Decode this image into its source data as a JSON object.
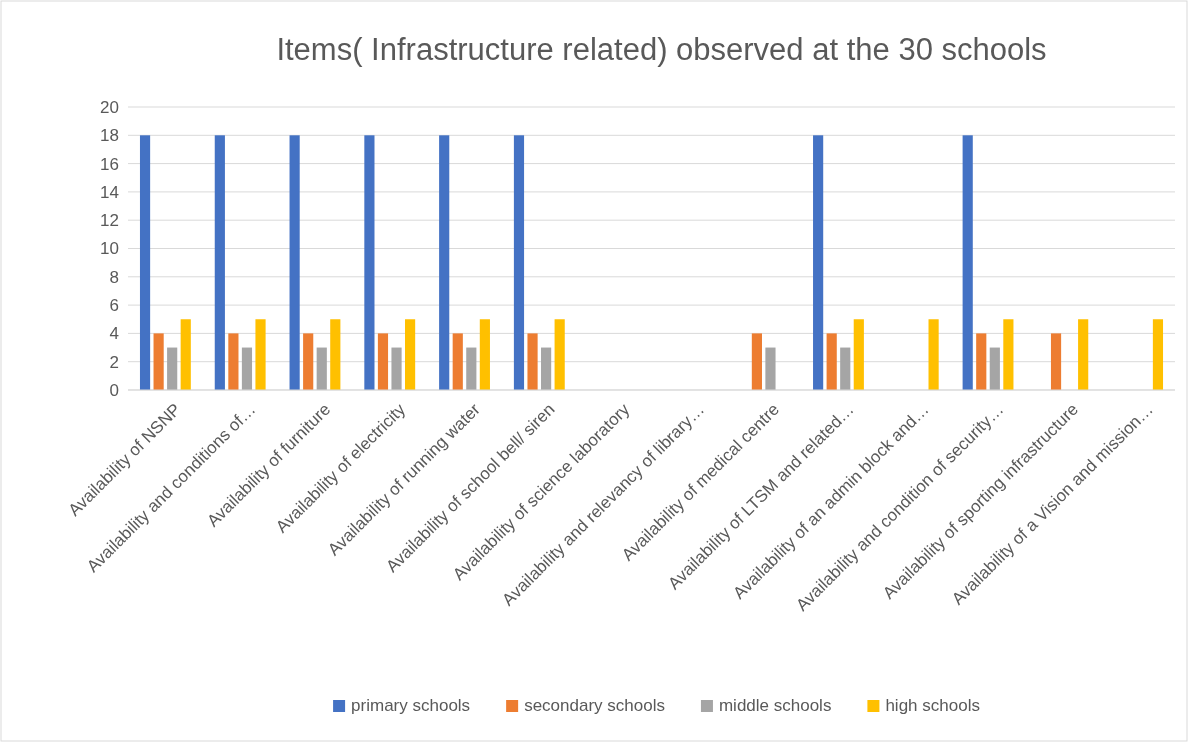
{
  "chart_data": {
    "type": "bar",
    "title": "Items( Infrastructure related) observed at the 30 schools",
    "categories": [
      "Availability of NSNP",
      "Availability and conditions of…",
      "Availability of furniture",
      "Availability of electricity",
      "Availability of running water",
      "Availability of school bell/ siren",
      "Availability of science laboratory",
      "Availability and relevancy of library…",
      "Availability of medical centre",
      "Availability of LTSM and related…",
      "Availability of an admin block and…",
      "Availability and condition of security…",
      "Availability of sporting infrastructure",
      "Availability of a Vision and mission…"
    ],
    "series": [
      {
        "name": "primary schools",
        "color": "#4472c4",
        "values": [
          18,
          18,
          18,
          18,
          18,
          18,
          0,
          0,
          0,
          18,
          0,
          18,
          0,
          0
        ]
      },
      {
        "name": "secondary schools",
        "color": "#ed7d31",
        "values": [
          4,
          4,
          4,
          4,
          4,
          4,
          0,
          0,
          4,
          4,
          0,
          4,
          4,
          0
        ]
      },
      {
        "name": "middle schools",
        "color": "#a5a5a5",
        "values": [
          3,
          3,
          3,
          3,
          3,
          3,
          0,
          0,
          3,
          3,
          0,
          3,
          0,
          0
        ]
      },
      {
        "name": "high schools",
        "color": "#ffc000",
        "values": [
          5,
          5,
          5,
          5,
          5,
          5,
          0,
          0,
          0,
          5,
          5,
          5,
          5,
          5
        ]
      }
    ],
    "ylim": [
      0,
      20
    ],
    "yticks": [
      0,
      2,
      4,
      6,
      8,
      10,
      12,
      14,
      16,
      18,
      20
    ],
    "grid": "y",
    "legend": "bottom"
  }
}
